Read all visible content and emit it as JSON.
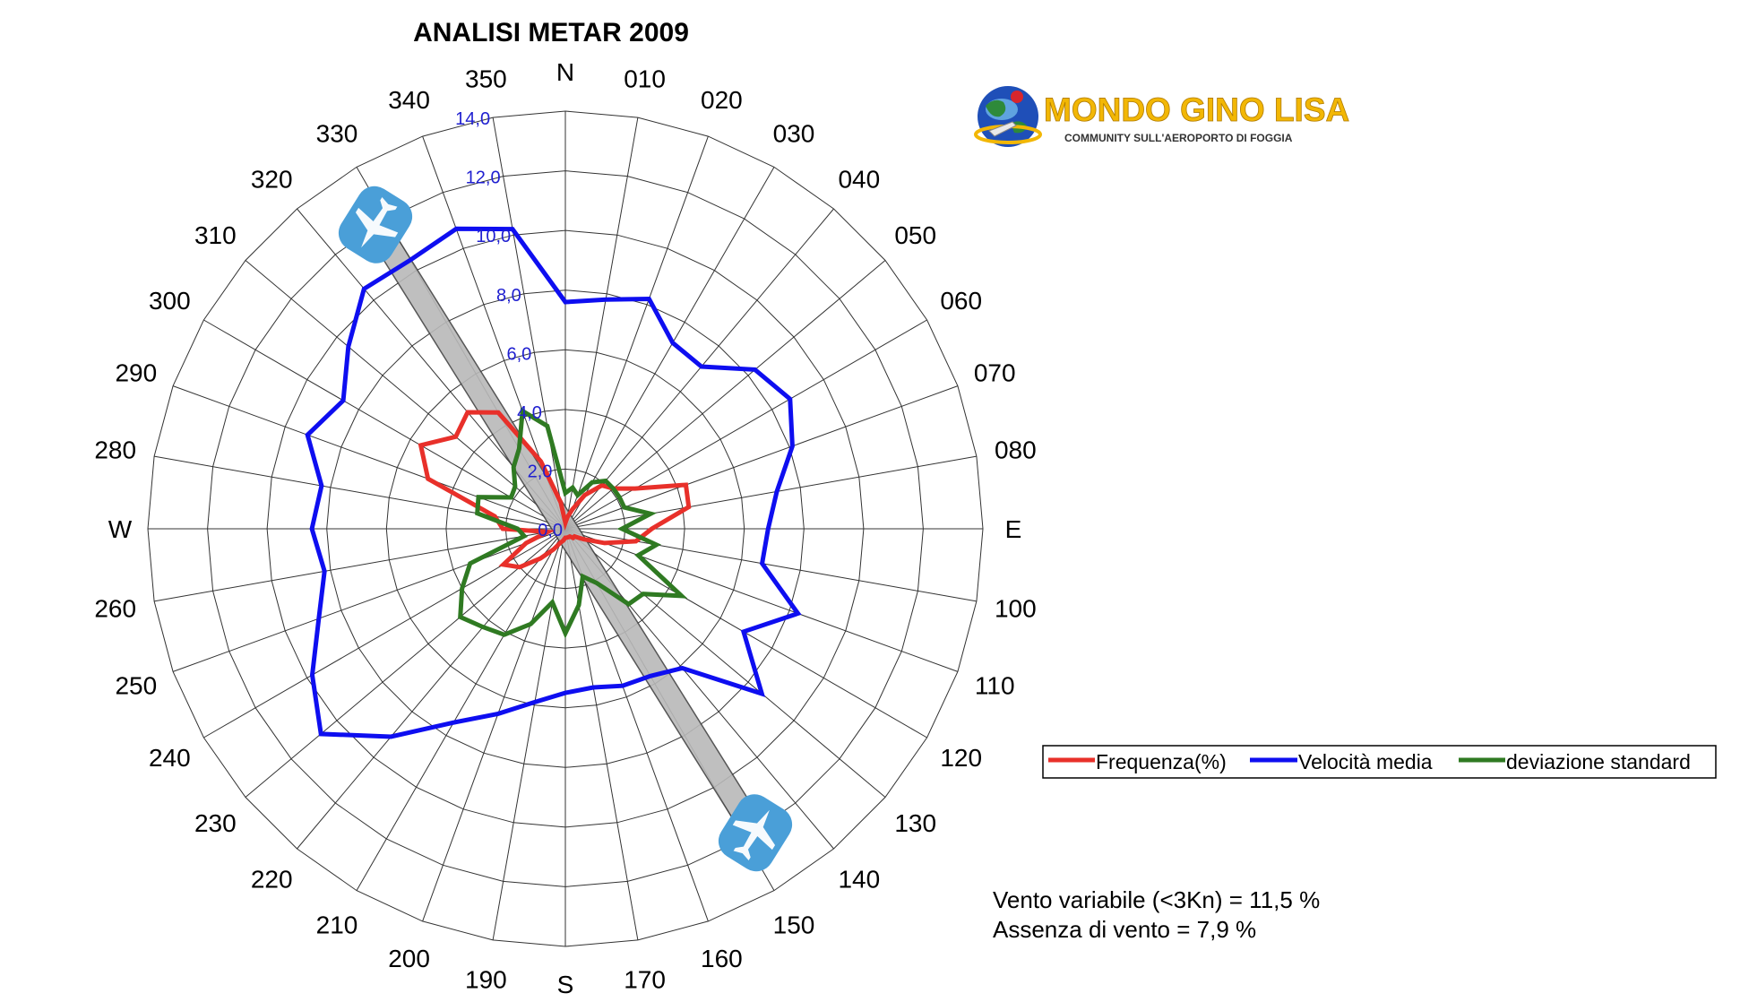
{
  "chart_data": {
    "type": "radar",
    "title": "ANALISI METAR 2009",
    "cardinals": {
      "N": "N",
      "E": "E",
      "S": "S",
      "W": "W"
    },
    "direction_labels": [
      "010",
      "020",
      "030",
      "040",
      "050",
      "060",
      "070",
      "080",
      "100",
      "110",
      "120",
      "130",
      "140",
      "150",
      "160",
      "170",
      "190",
      "200",
      "210",
      "220",
      "230",
      "240",
      "250",
      "260",
      "280",
      "290",
      "300",
      "310",
      "320",
      "330",
      "340",
      "350"
    ],
    "radial_axis": {
      "min": 0,
      "max": 14,
      "ticks": [
        "0,0",
        "2,0",
        "4,0",
        "6,0",
        "8,0",
        "10,0",
        "12,0",
        "14,0"
      ]
    },
    "angles_deg": [
      0,
      10,
      20,
      30,
      40,
      50,
      60,
      70,
      80,
      90,
      100,
      110,
      120,
      130,
      140,
      150,
      160,
      170,
      180,
      190,
      200,
      210,
      220,
      230,
      240,
      250,
      260,
      270,
      280,
      290,
      300,
      310,
      320,
      330,
      340,
      350
    ],
    "series": [
      {
        "name": "Frequenza(%)",
        "color": "#e8302a",
        "values": [
          0.2,
          0.4,
          0.7,
          1.3,
          1.9,
          2.1,
          2.7,
          4.3,
          4.2,
          2.9,
          2.4,
          1.4,
          0.7,
          0.4,
          0.4,
          0.3,
          0.3,
          0.3,
          0.3,
          0.4,
          0.5,
          0.8,
          1.3,
          2.0,
          2.4,
          1.4,
          0.6,
          2.1,
          2.4,
          4.9,
          5.6,
          4.8,
          5.1,
          4.5,
          2.4,
          0.9
        ]
      },
      {
        "name": "Velocità media",
        "color": "#0e0ef0",
        "values": [
          7.6,
          7.8,
          8.2,
          7.2,
          7.1,
          8.3,
          8.7,
          8.1,
          7.2,
          6.8,
          6.7,
          8.3,
          6.9,
          8.6,
          6.1,
          5.7,
          5.6,
          5.4,
          5.5,
          5.9,
          6.6,
          7.5,
          9.1,
          10.7,
          9.8,
          8.8,
          8.2,
          8.5,
          8.3,
          9.2,
          8.6,
          9.5,
          10.5,
          10.4,
          10.7,
          10.2
        ]
      },
      {
        "name": "deviazione standard",
        "color": "#2f7a22",
        "values": [
          1.2,
          1.4,
          1.2,
          1.8,
          2.1,
          2.1,
          2.1,
          2.1,
          2.9,
          1.9,
          3.1,
          2.6,
          4.5,
          3.4,
          3.3,
          2.1,
          1.7,
          2.6,
          3.5,
          2.5,
          3.4,
          4.1,
          4.3,
          4.6,
          4.0,
          3.4,
          1.4,
          1.6,
          3.0,
          3.1,
          2.1,
          2.2,
          2.7,
          3.1,
          4.2,
          3.5
        ]
      }
    ],
    "runway": {
      "heading_deg": 148,
      "reciprocal_deg": 328
    },
    "legend": {
      "position": "right"
    },
    "grid": true
  },
  "notes": {
    "line1": "Vento variabile (<3Kn) = 11,5 %",
    "line2": "Assenza di vento = 7,9 %"
  },
  "logo": {
    "name": "MONDO GINO LISA",
    "subtitle": "COMMUNITY SULL'AEROPORTO DI FOGGIA"
  },
  "colors": {
    "grid": "#333333",
    "runway_fill": "#b9b9b9",
    "runway_icon": "#4a9fd8",
    "logo_gold": "#f2b705"
  }
}
